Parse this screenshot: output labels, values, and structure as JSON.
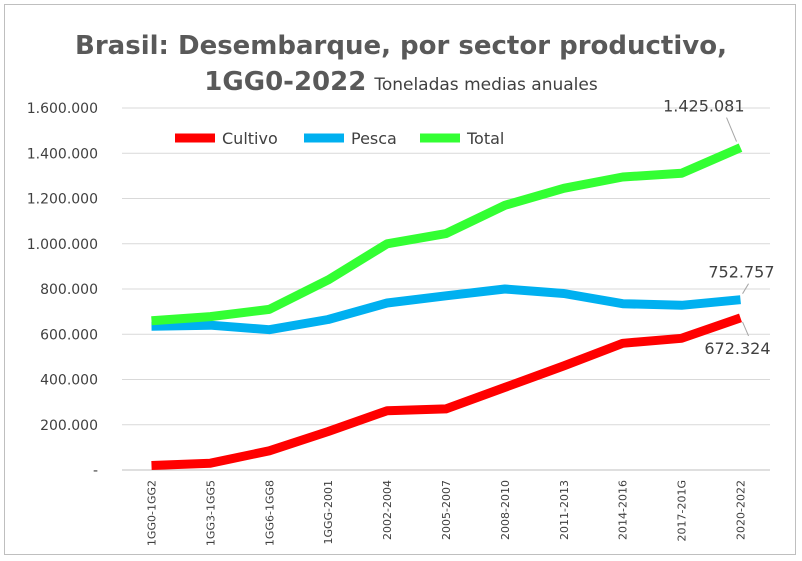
{
  "chart_data": {
    "type": "line",
    "title_line1": "Brasil: Desembarque, por sector productivo,",
    "title_line2": "1GG0-2022",
    "subtitle": "Toneladas medias anuales",
    "categories": [
      "1GG0-1GG2",
      "1GG3-1GG5",
      "1GG6-1GG8",
      "1GGG-2001",
      "2002-2004",
      "2005-2007",
      "2008-2010",
      "2011-2013",
      "2014-2016",
      "2017-201G",
      "2020-2022"
    ],
    "ylim": [
      0,
      1600000
    ],
    "ytick_values": [
      0,
      200000,
      400000,
      600000,
      800000,
      1000000,
      1200000,
      1400000,
      1600000
    ],
    "ytick_labels": [
      "-",
      "200.000",
      "400.000",
      "600.000",
      "800.000",
      "1.000.000",
      "1.200.000",
      "1.400.000",
      "1.600.000"
    ],
    "legend_position": "top-left",
    "grid": "horizontal",
    "series": [
      {
        "name": "Cultivo",
        "color": "#ff0000",
        "values": [
          20000,
          30000,
          85000,
          170000,
          262000,
          270000,
          365000,
          460000,
          560000,
          582000,
          672324
        ],
        "end_label": "672.324"
      },
      {
        "name": "Pesca",
        "color": "#00b0f0",
        "values": [
          635000,
          640000,
          620000,
          665000,
          738000,
          770000,
          800000,
          780000,
          735000,
          728000,
          752757
        ],
        "end_label": "752.757"
      },
      {
        "name": "Total",
        "color": "#33ff33",
        "values": [
          660000,
          678000,
          710000,
          840000,
          1000000,
          1045000,
          1170000,
          1245000,
          1295000,
          1312000,
          1425081
        ],
        "end_label": "1.425.081"
      }
    ]
  }
}
